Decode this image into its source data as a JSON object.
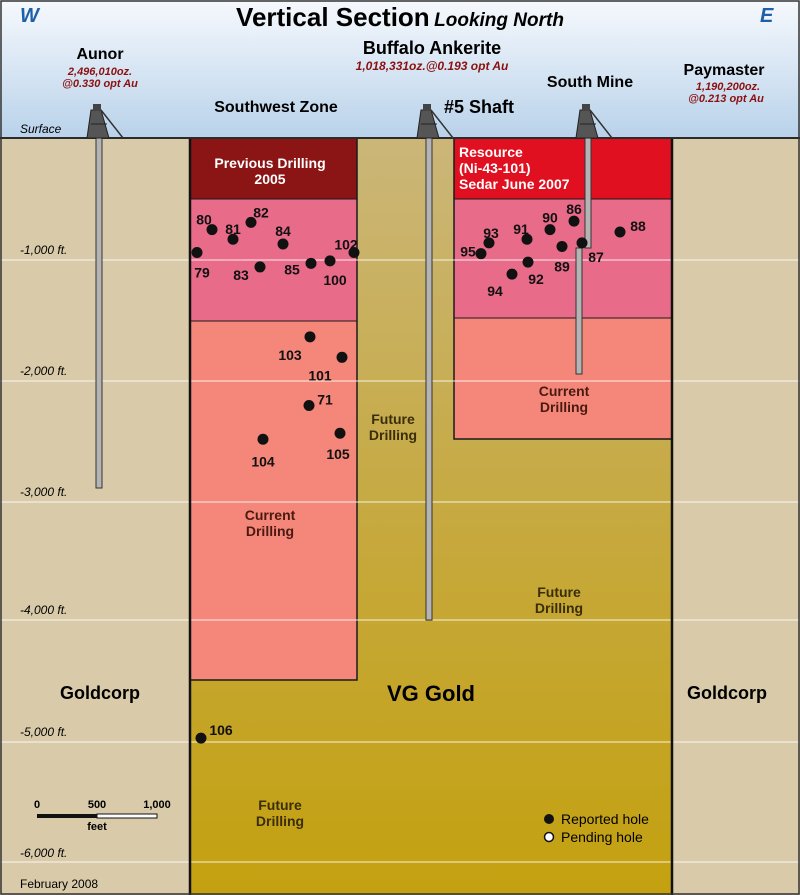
{
  "title": {
    "main": "Vertical Section",
    "sub": "Looking North",
    "west": "W",
    "east": "E"
  },
  "mines": {
    "aunor": {
      "name": "Aunor",
      "ounces": "2,496,010oz.",
      "grade": "@0.330 opt Au"
    },
    "buffalo": {
      "name": "Buffalo Ankerite",
      "detail": "1,018,331oz.@0.193 opt Au"
    },
    "paymaster": {
      "name": "Paymaster",
      "ounces": "1,190,200oz.",
      "grade": "@0.213 opt Au"
    },
    "south_mine": "South Mine",
    "southwest_zone": "Southwest Zone",
    "shaft5": "#5 Shaft"
  },
  "surface_label": "Surface",
  "depth_labels": [
    "-1,000 ft.",
    "-2,000 ft.",
    "-3,000 ft.",
    "-4,000 ft.",
    "-5,000 ft.",
    "-6,000 ft."
  ],
  "zones": {
    "previous_drilling": [
      "Previous Drilling",
      "2005"
    ],
    "resource": [
      "Resource",
      "(Ni-43-101)",
      "Sedar June 2007"
    ],
    "current_drilling_left": [
      "Current",
      "Drilling"
    ],
    "current_drilling_right": [
      "Current",
      "Drilling"
    ],
    "future_drilling_center": [
      "Future",
      "Drilling"
    ],
    "future_drilling_right": [
      "Future",
      "Drilling"
    ],
    "future_drilling_bottom": [
      "Future",
      "Drilling"
    ],
    "goldcorp_left": "Goldcorp",
    "goldcorp_right": "Goldcorp",
    "vg_gold": "VG Gold"
  },
  "holes": [
    {
      "id": "80",
      "depth_ft": -760
    },
    {
      "id": "82",
      "depth_ft": -700
    },
    {
      "id": "81",
      "depth_ft": -840
    },
    {
      "id": "84",
      "depth_ft": -880
    },
    {
      "id": "79",
      "depth_ft": -950
    },
    {
      "id": "83",
      "depth_ft": -1070
    },
    {
      "id": "85",
      "depth_ft": -1040
    },
    {
      "id": "100",
      "depth_ft": -1020
    },
    {
      "id": "102",
      "depth_ft": -950
    },
    {
      "id": "103",
      "depth_ft": -1650
    },
    {
      "id": "101",
      "depth_ft": -1820
    },
    {
      "id": "71",
      "depth_ft": -2220
    },
    {
      "id": "105",
      "depth_ft": -2450
    },
    {
      "id": "104",
      "depth_ft": -2500
    },
    {
      "id": "106",
      "depth_ft": -4980
    },
    {
      "id": "93",
      "depth_ft": -870
    },
    {
      "id": "95",
      "depth_ft": -960
    },
    {
      "id": "91",
      "depth_ft": -840
    },
    {
      "id": "90",
      "depth_ft": -760
    },
    {
      "id": "86",
      "depth_ft": -690
    },
    {
      "id": "88",
      "depth_ft": -780
    },
    {
      "id": "87",
      "depth_ft": -870
    },
    {
      "id": "89",
      "depth_ft": -900
    },
    {
      "id": "92",
      "depth_ft": -1030
    },
    {
      "id": "94",
      "depth_ft": -1130
    }
  ],
  "scale_bar": {
    "ticks": [
      "0",
      "500",
      "1,000"
    ],
    "unit": "feet"
  },
  "legend": {
    "reported": "Reported hole",
    "pending": "Pending hole"
  },
  "date": "February 2008",
  "colors": {
    "sky": "#c8dcef",
    "ground": "#d9cbaa",
    "vg_gold_top": "#c9b168",
    "vg_gold_bottom": "#c4a10f",
    "previous_drilling": "#8b1515",
    "resource": "#e01020",
    "pink_zone": "#e96b8a",
    "current_drilling": "#f5877a",
    "accent_blue": "#1f5fa8"
  }
}
